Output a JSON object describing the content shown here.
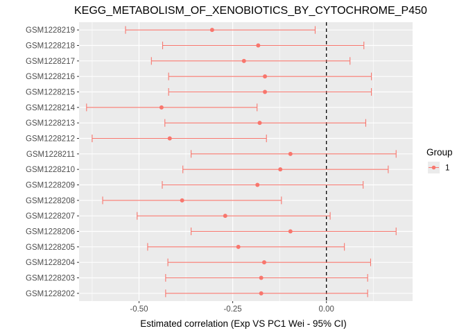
{
  "chart_data": {
    "type": "errorbar",
    "title": "KEGG_METABOLISM_OF_XENOBIOTICS_BY_CYTOCHROME_P450",
    "xlabel": "Estimated correlation (Exp VS PC1 Wei - 95% CI)",
    "ylabel": "",
    "xlim": [
      -0.66,
      0.23
    ],
    "x_ticks": [
      -0.5,
      -0.25,
      0.0
    ],
    "x_tick_labels": [
      "-0.50",
      "-0.25",
      "0.00"
    ],
    "reference_line": {
      "x": 0,
      "style": "dashed"
    },
    "grid": true,
    "legend": {
      "title": "Group",
      "position": "right",
      "entries": [
        "1"
      ]
    },
    "colors": {
      "series": "#F8766D",
      "panel": "#EBEBEB",
      "grid": "#FFFFFF"
    },
    "categories": [
      "GSM1228219",
      "GSM1228218",
      "GSM1228217",
      "GSM1228216",
      "GSM1228215",
      "GSM1228214",
      "GSM1228213",
      "GSM1228212",
      "GSM1228211",
      "GSM1228210",
      "GSM1228209",
      "GSM1228208",
      "GSM1228207",
      "GSM1228206",
      "GSM1228205",
      "GSM1228204",
      "GSM1228203",
      "GSM1228202"
    ],
    "series": [
      {
        "name": "1",
        "estimate": [
          -0.305,
          -0.182,
          -0.22,
          -0.164,
          -0.164,
          -0.44,
          -0.178,
          -0.418,
          -0.096,
          -0.123,
          -0.184,
          -0.385,
          -0.27,
          -0.096,
          -0.235,
          -0.166,
          -0.174,
          -0.174
        ],
        "lower": [
          -0.536,
          -0.437,
          -0.467,
          -0.421,
          -0.421,
          -0.64,
          -0.431,
          -0.625,
          -0.361,
          -0.383,
          -0.438,
          -0.597,
          -0.505,
          -0.361,
          -0.477,
          -0.423,
          -0.429,
          -0.429
        ],
        "upper": [
          -0.03,
          0.1,
          0.063,
          0.12,
          0.12,
          -0.185,
          0.105,
          -0.16,
          0.186,
          0.165,
          0.098,
          -0.12,
          0.01,
          0.186,
          0.048,
          0.118,
          0.11,
          0.11
        ]
      }
    ]
  }
}
